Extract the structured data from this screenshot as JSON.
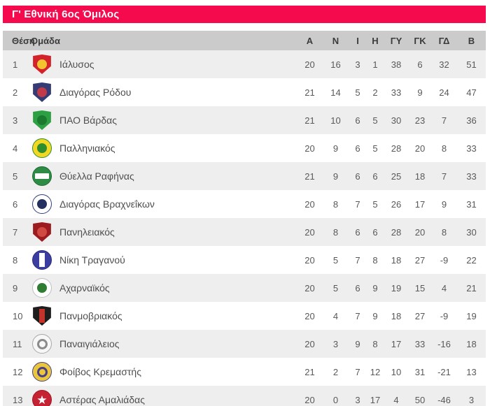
{
  "widget": {
    "title": "Γ' Εθνική 6ος Όμιλος"
  },
  "theme": {
    "accent": "#F50A4E",
    "header_row_bg": "#CBCBCB",
    "row_alt_bg": "#EEEEEE",
    "row_bg": "#FFFFFF",
    "text": "#595959",
    "header_text": "#3B3B3D",
    "title_text": "#FFFFFF"
  },
  "table": {
    "position_header": "Θέση",
    "team_header": "Ομάδα",
    "stat_headers": [
      "Α",
      "Ν",
      "Ι",
      "Η",
      "ΓΥ",
      "ΓΚ",
      "ΓΔ",
      "Β"
    ],
    "rows": [
      {
        "position": 1,
        "team": "Ιάλυσος",
        "stats": [
          20,
          16,
          3,
          1,
          38,
          6,
          32,
          51
        ],
        "logo": {
          "icon": "ialysos-crest",
          "shape": "shield",
          "bg": "#D3222A",
          "accent": "#F4C430",
          "motif": "dot"
        }
      },
      {
        "position": 2,
        "team": "Διαγόρας Ρόδου",
        "stats": [
          21,
          14,
          5,
          2,
          33,
          9,
          24,
          47
        ],
        "logo": {
          "icon": "diagoras-rodou-crest",
          "shape": "shield",
          "bg": "#343B75",
          "accent": "#C13A47",
          "motif": "dot"
        }
      },
      {
        "position": 3,
        "team": "ΠΑΟ Βάρδας",
        "stats": [
          21,
          10,
          6,
          5,
          30,
          23,
          7,
          36
        ],
        "logo": {
          "icon": "pao-vardas-crest",
          "shape": "shield",
          "bg": "#2EA044",
          "accent": "#1B7A2E",
          "motif": "dot"
        }
      },
      {
        "position": 4,
        "team": "Παλληνιακός",
        "stats": [
          20,
          9,
          6,
          5,
          28,
          20,
          8,
          33
        ],
        "logo": {
          "icon": "palliniakos-crest",
          "shape": "circle",
          "bg": "#F2D823",
          "border": "#2F8C2F",
          "accent": "#2F8C2F",
          "motif": "dot"
        }
      },
      {
        "position": 5,
        "team": "Θύελλα Ραφήνας",
        "stats": [
          21,
          9,
          6,
          6,
          25,
          18,
          7,
          33
        ],
        "logo": {
          "icon": "thyella-rafinas-crest",
          "shape": "circle",
          "bg": "#2E8B45",
          "border": "#1F6B32",
          "accent": "#FFFFFF",
          "motif": "band"
        }
      },
      {
        "position": 6,
        "team": "Διαγόρας Βραχνεΐκων",
        "stats": [
          20,
          8,
          7,
          5,
          26,
          17,
          9,
          31
        ],
        "logo": {
          "icon": "diagoras-vrachneikon-crest",
          "shape": "circle",
          "bg": "#FFFFFF",
          "border": "#32407A",
          "accent": "#24315E",
          "motif": "dot"
        }
      },
      {
        "position": 7,
        "team": "Πανηλειακός",
        "stats": [
          20,
          8,
          6,
          6,
          28,
          20,
          8,
          30
        ],
        "logo": {
          "icon": "panileiakos-crest",
          "shape": "shield",
          "bg": "#9B1B20",
          "accent": "#D04A42",
          "motif": "dot"
        }
      },
      {
        "position": 8,
        "team": "Νίκη Τραγανού",
        "stats": [
          20,
          5,
          7,
          8,
          18,
          27,
          -9,
          22
        ],
        "logo": {
          "icon": "niki-traganou-crest",
          "shape": "circle",
          "bg": "#3B3EA0",
          "border": "#2B2E7A",
          "accent": "#FFFFFF",
          "motif": "stripe"
        }
      },
      {
        "position": 9,
        "team": "Αχαρναϊκός",
        "stats": [
          20,
          5,
          6,
          9,
          19,
          15,
          4,
          21
        ],
        "logo": {
          "icon": "acharnaikos-crest",
          "shape": "circle",
          "bg": "#FFFFFF",
          "border": "#BFBFBF",
          "accent": "#2E7D32",
          "motif": "dot"
        }
      },
      {
        "position": 10,
        "team": "Πανμοβριακός",
        "stats": [
          20,
          4,
          7,
          9,
          18,
          27,
          -9,
          19
        ],
        "logo": {
          "icon": "panmovriakos-crest",
          "shape": "shield",
          "bg": "#1D1D1D",
          "accent": "#C2342B",
          "motif": "stripe"
        }
      },
      {
        "position": 11,
        "team": "Παναιγιάλειος",
        "stats": [
          20,
          3,
          9,
          8,
          17,
          33,
          -16,
          18
        ],
        "logo": {
          "icon": "panaigialeios-crest",
          "shape": "circle",
          "bg": "#F7F7F7",
          "border": "#A8A8A8",
          "accent": "#8B8B8B",
          "motif": "ring"
        }
      },
      {
        "position": 12,
        "team": "Φοίβος Κρεμαστής",
        "stats": [
          21,
          2,
          7,
          12,
          10,
          31,
          -21,
          13
        ],
        "logo": {
          "icon": "foivos-kremastis-crest",
          "shape": "circle",
          "bg": "#E9C63B",
          "border": "#4A3E86",
          "accent": "#4A3E86",
          "motif": "ring"
        }
      },
      {
        "position": 13,
        "team": "Αστέρας Αμαλιάδας",
        "stats": [
          20,
          0,
          3,
          17,
          4,
          50,
          -46,
          3
        ],
        "logo": {
          "icon": "asteras-amaliadas-crest",
          "shape": "circle",
          "bg": "#C52233",
          "border": "#9E1826",
          "accent": "#FFFFFF",
          "motif": "star",
          "motif_glyph": "★"
        }
      }
    ]
  }
}
